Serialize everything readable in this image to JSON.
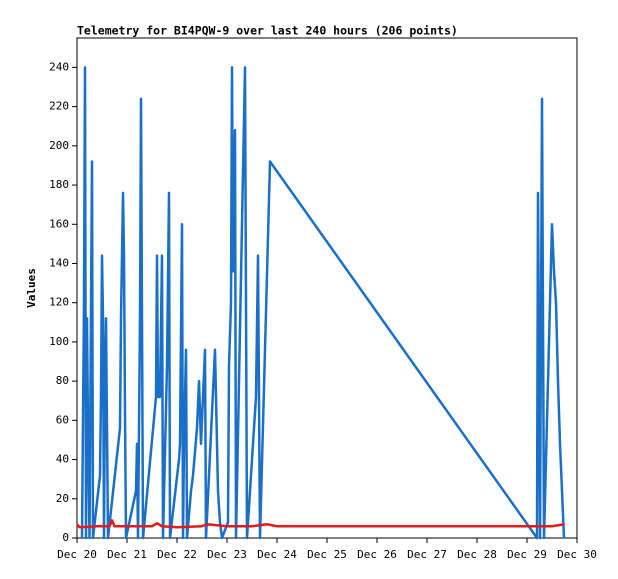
{
  "chart_data": {
    "type": "line",
    "title": "Telemetry for BI4PQW-9 over last 240 hours (206 points)",
    "y_label": "Values",
    "xlim": [
      20,
      30
    ],
    "ylim": [
      0,
      255
    ],
    "xticks": [
      {
        "value": 20,
        "label": "Dec 20"
      },
      {
        "value": 21,
        "label": "Dec 21"
      },
      {
        "value": 22,
        "label": "Dec 22"
      },
      {
        "value": 23,
        "label": "Dec 23"
      },
      {
        "value": 24,
        "label": "Dec 24"
      },
      {
        "value": 25,
        "label": "Dec 25"
      },
      {
        "value": 26,
        "label": "Dec 26"
      },
      {
        "value": 27,
        "label": "Dec 27"
      },
      {
        "value": 28,
        "label": "Dec 28"
      },
      {
        "value": 29,
        "label": "Dec 29"
      },
      {
        "value": 30,
        "label": "Dec 30"
      }
    ],
    "yticks": [
      0,
      20,
      40,
      60,
      80,
      100,
      120,
      140,
      160,
      180,
      200,
      220,
      240
    ],
    "grid": false,
    "series": [
      {
        "color": "#1a6fc9",
        "x": [
          20.1,
          20.14,
          20.16,
          20.18,
          20.2,
          20.22,
          20.25,
          20.3,
          20.32,
          20.46,
          20.48,
          20.5,
          20.52,
          20.54,
          20.56,
          20.58,
          20.6,
          20.62,
          20.86,
          20.88,
          20.92,
          20.94,
          20.96,
          20.98,
          21.18,
          21.2,
          21.22,
          21.26,
          21.28,
          21.3,
          21.32,
          21.58,
          21.6,
          21.62,
          21.66,
          21.7,
          21.72,
          21.8,
          21.84,
          21.86,
          22.04,
          22.06,
          22.1,
          22.12,
          22.14,
          22.18,
          22.2,
          22.28,
          22.32,
          22.4,
          22.44,
          22.48,
          22.56,
          22.58,
          22.76,
          22.78,
          22.82,
          22.86,
          22.9,
          23.02,
          23.04,
          23.08,
          23.1,
          23.12,
          23.16,
          23.18,
          23.36,
          23.4,
          23.58,
          23.62,
          23.66,
          23.86,
          29.2,
          29.22,
          29.26,
          29.3,
          29.34,
          29.5,
          29.54,
          29.58,
          29.62,
          29.66,
          29.7,
          29.74
        ],
        "values": [
          0,
          120,
          240,
          0,
          112,
          56,
          0,
          192,
          0,
          32,
          72,
          144,
          112,
          0,
          84,
          112,
          56,
          0,
          56,
          112,
          176,
          144,
          64,
          0,
          24,
          48,
          0,
          112,
          224,
          112,
          0,
          72,
          144,
          72,
          72,
          144,
          0,
          88,
          176,
          0,
          40,
          48,
          160,
          0,
          48,
          96,
          0,
          24,
          32,
          56,
          80,
          48,
          96,
          0,
          96,
          72,
          24,
          8,
          0,
          8,
          88,
          120,
          240,
          136,
          208,
          0,
          240,
          0,
          72,
          144,
          0,
          192,
          0,
          176,
          0,
          224,
          0,
          160,
          136,
          120,
          80,
          48,
          24,
          0
        ]
      },
      {
        "color": "#e31a1c",
        "x": [
          20.0,
          20.05,
          20.4,
          20.65,
          20.7,
          20.75,
          21.0,
          21.5,
          21.6,
          21.7,
          22.0,
          22.5,
          22.6,
          23.0,
          23.5,
          23.8,
          24.0,
          26.0,
          29.0,
          29.5,
          29.75
        ],
        "values": [
          7,
          5.5,
          6,
          6,
          9,
          6,
          6,
          6,
          7.5,
          6,
          5.5,
          6,
          7,
          6,
          6,
          7,
          6,
          6,
          6,
          6,
          7
        ]
      }
    ]
  }
}
